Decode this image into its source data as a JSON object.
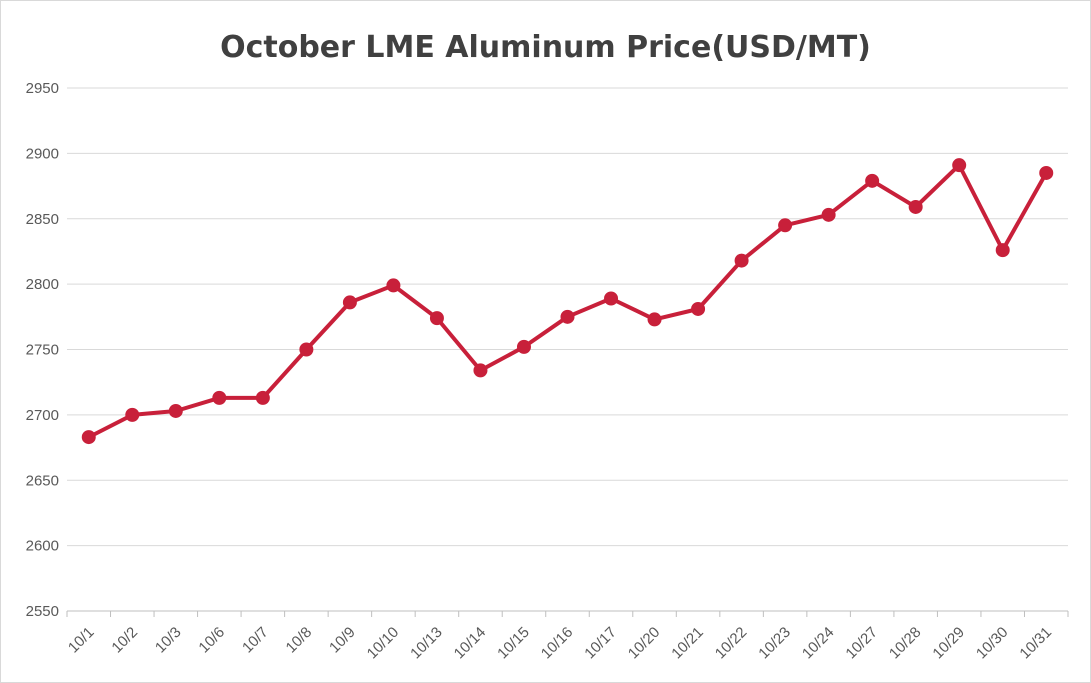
{
  "chart_data": {
    "type": "line",
    "title": "October LME Aluminum Price(USD/MT)",
    "xlabel": "",
    "ylabel": "",
    "ylim": [
      2550,
      2950
    ],
    "yticks": [
      2550,
      2600,
      2650,
      2700,
      2750,
      2800,
      2850,
      2900,
      2950
    ],
    "grid": true,
    "legend": "none",
    "categories": [
      "10/1",
      "10/2",
      "10/3",
      "10/6",
      "10/7",
      "10/8",
      "10/9",
      "10/10",
      "10/13",
      "10/14",
      "10/15",
      "10/16",
      "10/17",
      "10/20",
      "10/21",
      "10/22",
      "10/23",
      "10/24",
      "10/27",
      "10/28",
      "10/29",
      "10/30",
      "10/31"
    ],
    "series": [
      {
        "color": "#c8203a",
        "values": [
          2683,
          2700,
          2703,
          2713,
          2713,
          2750,
          2786,
          2799,
          2774,
          2734,
          2752,
          2775,
          2789,
          2773,
          2781,
          2818,
          2845,
          2853,
          2879,
          2859,
          2891,
          2826,
          2885
        ]
      }
    ]
  }
}
